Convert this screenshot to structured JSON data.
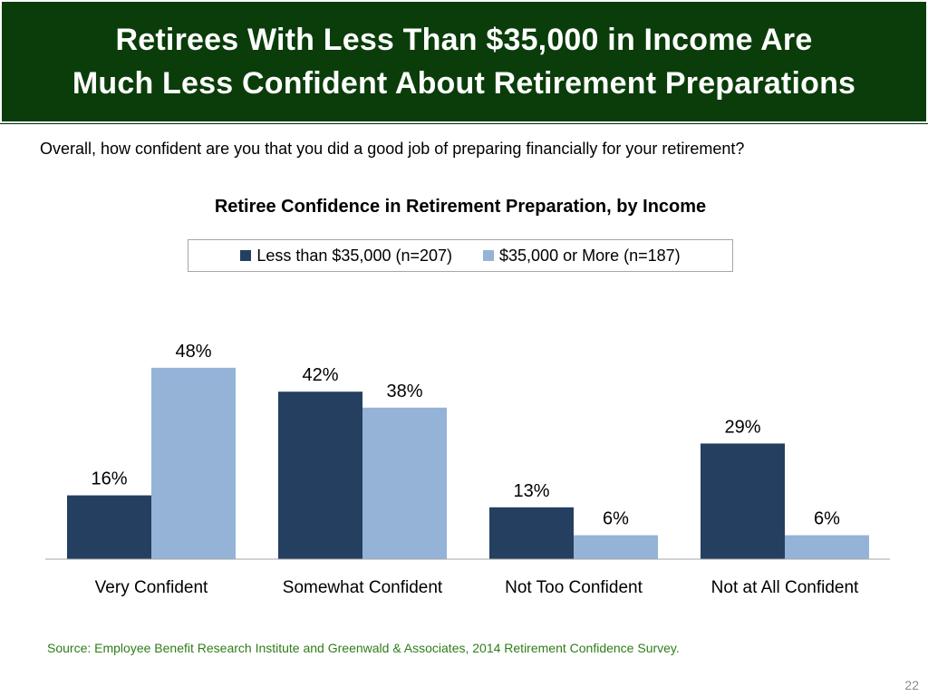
{
  "header": {
    "title_line1": "Retirees With Less Than $35,000 in Income Are",
    "title_line2": "Much Less Confident About Retirement Preparations"
  },
  "question": "Overall, how confident are you that you did a good job of preparing financially for your retirement?",
  "footer": {
    "source": "Source:  Employee Benefit Research Institute and Greenwald & Associates, 2014 Retirement Confidence Survey.",
    "page_number": "22"
  },
  "colors": {
    "header_bg": "#0a3d0a",
    "series_low": "#243f60",
    "series_high": "#95b3d7",
    "source_text": "#2e7d1a"
  },
  "chart_data": {
    "type": "bar",
    "title": "Retiree Confidence in Retirement Preparation, by Income",
    "categories": [
      "Very Confident",
      "Somewhat Confident",
      "Not Too Confident",
      "Not at All Confident"
    ],
    "series": [
      {
        "name": "Less than $35,000 (n=207)",
        "values": [
          16,
          42,
          13,
          29
        ]
      },
      {
        "name": "$35,000 or More (n=187)",
        "values": [
          48,
          38,
          6,
          6
        ]
      }
    ],
    "value_format": "%",
    "ylim": [
      0,
      55
    ],
    "grid": false,
    "legend_position": "top"
  }
}
